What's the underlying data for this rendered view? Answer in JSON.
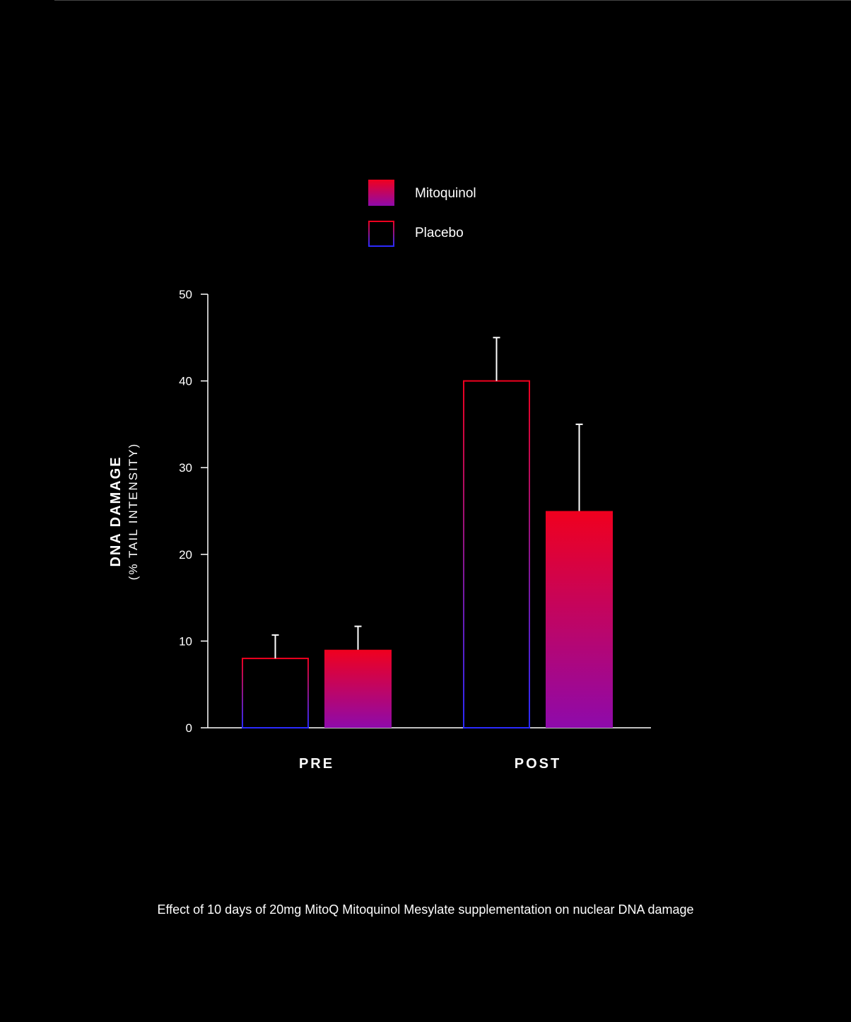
{
  "chart_data": {
    "type": "bar",
    "categories": [
      "PRE",
      "POST"
    ],
    "series": [
      {
        "name": "Placebo",
        "values": [
          8,
          40
        ],
        "errors": [
          2.7,
          5
        ],
        "style": "outline"
      },
      {
        "name": "Mitoquinol",
        "values": [
          9,
          25
        ],
        "errors": [
          2.7,
          10
        ],
        "style": "filled"
      }
    ],
    "ylabel": "DNA DAMAGE",
    "ylabel_sub": "(% TAIL INTENSITY)",
    "ylim": [
      0,
      50
    ],
    "yticks": [
      0,
      10,
      20,
      30,
      40,
      50
    ],
    "legend_order": [
      "Mitoquinol",
      "Placebo"
    ],
    "legend_position": "top-center",
    "grid": false,
    "colors": {
      "red": "#f0001e",
      "purple": "#8e0aab",
      "blue": "#2a2aff",
      "background": "#000000"
    }
  },
  "caption": "Effect of 10 days of 20mg MitoQ Mitoquinol Mesylate supplementation on nuclear DNA damage"
}
